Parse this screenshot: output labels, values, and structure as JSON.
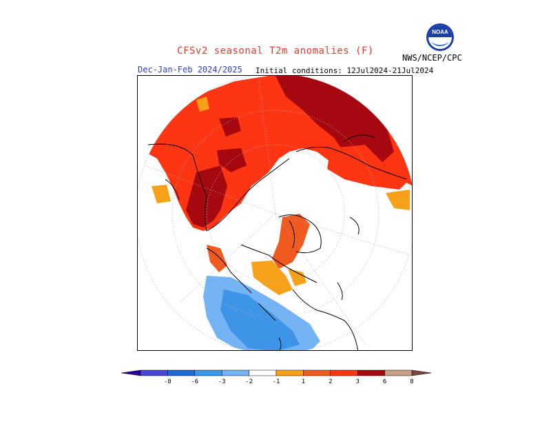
{
  "header": {
    "title": "CFSv2 seasonal T2m anomalies (F)",
    "period": "Dec-Jan-Feb 2024/2025",
    "initial_conditions": "Initial conditions: 12Jul2024-21Jul2024",
    "agency": "NWS/NCEP/CPC"
  },
  "logo": {
    "icon": "noaa-logo-icon",
    "text": "NOAA"
  },
  "map": {
    "projection": "north-polar-stereographic",
    "variable": "T2m anomaly",
    "units": "F"
  },
  "legend": {
    "labels": [
      "-8",
      "-6",
      "-3",
      "-2",
      "-1",
      "1",
      "2",
      "3",
      "6",
      "8"
    ],
    "colors": [
      "#2800a0",
      "#4a46d8",
      "#1e6bd6",
      "#3e95e8",
      "#74b4f4",
      "#ffffff",
      "#f7a118",
      "#f05a1e",
      "#fe3512",
      "#a5080e",
      "#c8a088",
      "#7a4838"
    ]
  }
}
